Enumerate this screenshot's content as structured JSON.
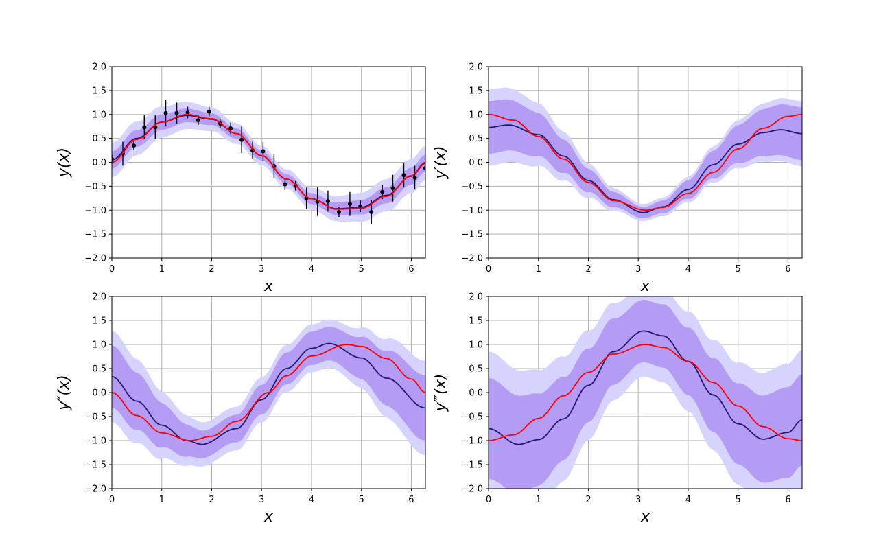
{
  "colors": {
    "band_2sigma": "#d6d4ff",
    "band_1sigma": "#b49cf5",
    "gp_mean": "#1f1970",
    "truth": "#ff0000",
    "data_points": "#000000",
    "grid": "#b0b0b0"
  },
  "chart_data": [
    {
      "type": "line",
      "xlabel": "x",
      "ylabel": "y(x)",
      "xlim": [
        0,
        6.283
      ],
      "ylim": [
        -2,
        2
      ],
      "xticks": [
        "0",
        "1",
        "2",
        "3",
        "4",
        "5",
        "6"
      ],
      "yticks": [
        "−2.0",
        "−1.5",
        "−1.0",
        "−0.5",
        "0.0",
        "0.5",
        "1.0",
        "1.5",
        "2.0"
      ],
      "grid": true,
      "series": [
        {
          "role": "gp_mean",
          "x": [
            0,
            0.5,
            1.0,
            1.5,
            2.0,
            2.5,
            3.0,
            3.5,
            4.0,
            4.5,
            5.0,
            5.5,
            6.0,
            6.283
          ],
          "values": [
            0.05,
            0.5,
            0.84,
            0.98,
            0.9,
            0.6,
            0.14,
            -0.35,
            -0.76,
            -0.97,
            -0.94,
            -0.69,
            -0.29,
            -0.02
          ]
        },
        {
          "role": "truth",
          "x": [
            0,
            0.5,
            1.0,
            1.5,
            2.0,
            2.5,
            3.0,
            3.5,
            4.0,
            4.5,
            5.0,
            5.5,
            6.0,
            6.283
          ],
          "values": [
            0.0,
            0.48,
            0.84,
            1.0,
            0.91,
            0.6,
            0.14,
            -0.35,
            -0.76,
            -0.98,
            -0.96,
            -0.71,
            -0.28,
            0.0
          ]
        },
        {
          "role": "band_1sigma_half_width",
          "x": [
            0,
            3.14,
            6.283
          ],
          "values": [
            0.18,
            0.1,
            0.18
          ]
        },
        {
          "role": "band_2sigma_half_width",
          "x": [
            0,
            3.14,
            6.283
          ],
          "values": [
            0.36,
            0.2,
            0.36
          ]
        }
      ],
      "points": {
        "x": [
          0.0,
          0.22,
          0.44,
          0.65,
          0.87,
          1.08,
          1.3,
          1.52,
          1.73,
          1.95,
          2.17,
          2.38,
          2.6,
          2.82,
          3.03,
          3.25,
          3.47,
          3.68,
          3.9,
          4.12,
          4.33,
          4.55,
          4.77,
          4.98,
          5.2,
          5.42,
          5.63,
          5.85,
          6.07,
          6.28
        ],
        "y": [
          0.07,
          0.18,
          0.35,
          0.73,
          0.73,
          1.03,
          1.03,
          1.04,
          0.88,
          1.06,
          0.81,
          0.71,
          0.47,
          0.25,
          0.23,
          -0.08,
          -0.46,
          -0.49,
          -0.75,
          -0.82,
          -0.81,
          -1.04,
          -0.87,
          -0.92,
          -1.04,
          -0.62,
          -0.54,
          -0.27,
          -0.32,
          -0.12
        ],
        "err": [
          0.1,
          0.25,
          0.1,
          0.25,
          0.25,
          0.28,
          0.22,
          0.12,
          0.1,
          0.1,
          0.1,
          0.12,
          0.28,
          0.18,
          0.2,
          0.25,
          0.12,
          0.1,
          0.22,
          0.3,
          0.22,
          0.1,
          0.25,
          0.12,
          0.25,
          0.15,
          0.28,
          0.25,
          0.25,
          0.15
        ]
      }
    },
    {
      "type": "line",
      "xlabel": "x",
      "ylabel": "y′(x)",
      "xlim": [
        0,
        6.283
      ],
      "ylim": [
        -2,
        2
      ],
      "xticks": [
        "0",
        "1",
        "2",
        "3",
        "4",
        "5",
        "6"
      ],
      "yticks": [
        "−2.0",
        "−1.5",
        "−1.0",
        "−0.5",
        "0.0",
        "0.5",
        "1.0",
        "1.5",
        "2.0"
      ],
      "grid": true,
      "series": [
        {
          "role": "gp_mean",
          "x": [
            0,
            0.4,
            1.0,
            1.5,
            2.0,
            2.5,
            3.1,
            3.5,
            4.0,
            4.5,
            5.0,
            5.5,
            5.85,
            6.283
          ],
          "values": [
            0.73,
            0.78,
            0.58,
            0.13,
            -0.38,
            -0.78,
            -1.05,
            -0.93,
            -0.57,
            -0.05,
            0.38,
            0.62,
            0.68,
            0.6
          ]
        },
        {
          "role": "truth",
          "x": [
            0,
            0.5,
            1.0,
            1.5,
            2.0,
            2.5,
            3.14,
            3.5,
            4.0,
            4.5,
            5.0,
            5.5,
            6.0,
            6.283
          ],
          "values": [
            1.0,
            0.88,
            0.54,
            0.07,
            -0.42,
            -0.8,
            -1.0,
            -0.94,
            -0.65,
            -0.21,
            0.28,
            0.71,
            0.96,
            1.0
          ]
        },
        {
          "role": "band_1sigma_half_width",
          "x": [
            0,
            3.14,
            6.283
          ],
          "values": [
            0.55,
            0.12,
            0.55
          ]
        },
        {
          "role": "band_2sigma_half_width",
          "x": [
            0,
            3.14,
            6.283
          ],
          "values": [
            0.8,
            0.18,
            0.68
          ]
        }
      ]
    },
    {
      "type": "line",
      "xlabel": "x",
      "ylabel": "y″(x)",
      "xlim": [
        0,
        6.283
      ],
      "ylim": [
        -2,
        2
      ],
      "xticks": [
        "0",
        "1",
        "2",
        "3",
        "4",
        "5",
        "6"
      ],
      "yticks": [
        "−2.0",
        "−1.5",
        "−1.0",
        "−0.5",
        "0.0",
        "0.5",
        "1.0",
        "1.5",
        "2.0"
      ],
      "grid": true,
      "series": [
        {
          "role": "gp_mean",
          "x": [
            0,
            0.5,
            1.0,
            1.5,
            1.8,
            2.5,
            3.0,
            3.5,
            4.0,
            4.35,
            5.0,
            5.5,
            6.283
          ],
          "values": [
            0.33,
            -0.18,
            -0.68,
            -1.0,
            -1.08,
            -0.75,
            -0.15,
            0.5,
            0.92,
            1.02,
            0.72,
            0.3,
            -0.32
          ]
        },
        {
          "role": "truth",
          "x": [
            0,
            0.5,
            1.0,
            1.57,
            2.0,
            2.5,
            3.14,
            3.5,
            4.0,
            4.71,
            5.0,
            5.5,
            6.0,
            6.283
          ],
          "values": [
            0.0,
            -0.48,
            -0.84,
            -1.0,
            -0.91,
            -0.6,
            0.0,
            0.35,
            0.76,
            1.0,
            0.96,
            0.71,
            0.28,
            0.0
          ]
        },
        {
          "role": "band_1sigma_half_width",
          "x": [
            0,
            2.0,
            4.3,
            6.283
          ],
          "values": [
            0.65,
            0.28,
            0.35,
            0.68
          ]
        },
        {
          "role": "band_2sigma_half_width",
          "x": [
            0,
            2.0,
            4.3,
            6.283
          ],
          "values": [
            0.95,
            0.45,
            0.5,
            0.98
          ]
        }
      ]
    },
    {
      "type": "line",
      "xlabel": "x",
      "ylabel": "y‴(x)",
      "xlim": [
        0,
        6.283
      ],
      "ylim": [
        -2,
        2
      ],
      "xticks": [
        "0",
        "1",
        "2",
        "3",
        "4",
        "5",
        "6"
      ],
      "yticks": [
        "−2.0",
        "−1.5",
        "−1.0",
        "−0.5",
        "0.0",
        "0.5",
        "1.0",
        "1.5",
        "2.0"
      ],
      "grid": true,
      "series": [
        {
          "role": "gp_mean",
          "x": [
            0,
            0.6,
            1.0,
            1.5,
            2.0,
            2.5,
            3.1,
            3.5,
            4.0,
            4.5,
            5.0,
            5.5,
            6.0,
            6.283
          ],
          "values": [
            -0.75,
            -1.08,
            -0.98,
            -0.55,
            0.15,
            0.85,
            1.28,
            1.18,
            0.65,
            -0.05,
            -0.65,
            -0.97,
            -0.83,
            -0.57
          ]
        },
        {
          "role": "truth",
          "x": [
            0,
            0.5,
            1.0,
            1.5,
            2.0,
            2.5,
            3.14,
            3.5,
            4.0,
            4.5,
            5.0,
            5.5,
            6.0,
            6.283
          ],
          "values": [
            -1.0,
            -0.88,
            -0.54,
            -0.07,
            0.42,
            0.8,
            1.0,
            0.94,
            0.65,
            0.21,
            -0.28,
            -0.71,
            -0.96,
            -1.0
          ]
        },
        {
          "role": "band_1sigma_half_width",
          "x": [
            0,
            3.14,
            6.283
          ],
          "values": [
            1.05,
            0.65,
            0.95
          ]
        },
        {
          "role": "band_2sigma_half_width",
          "x": [
            0,
            3.14,
            6.283
          ],
          "values": [
            1.6,
            0.95,
            1.45
          ]
        }
      ]
    }
  ]
}
